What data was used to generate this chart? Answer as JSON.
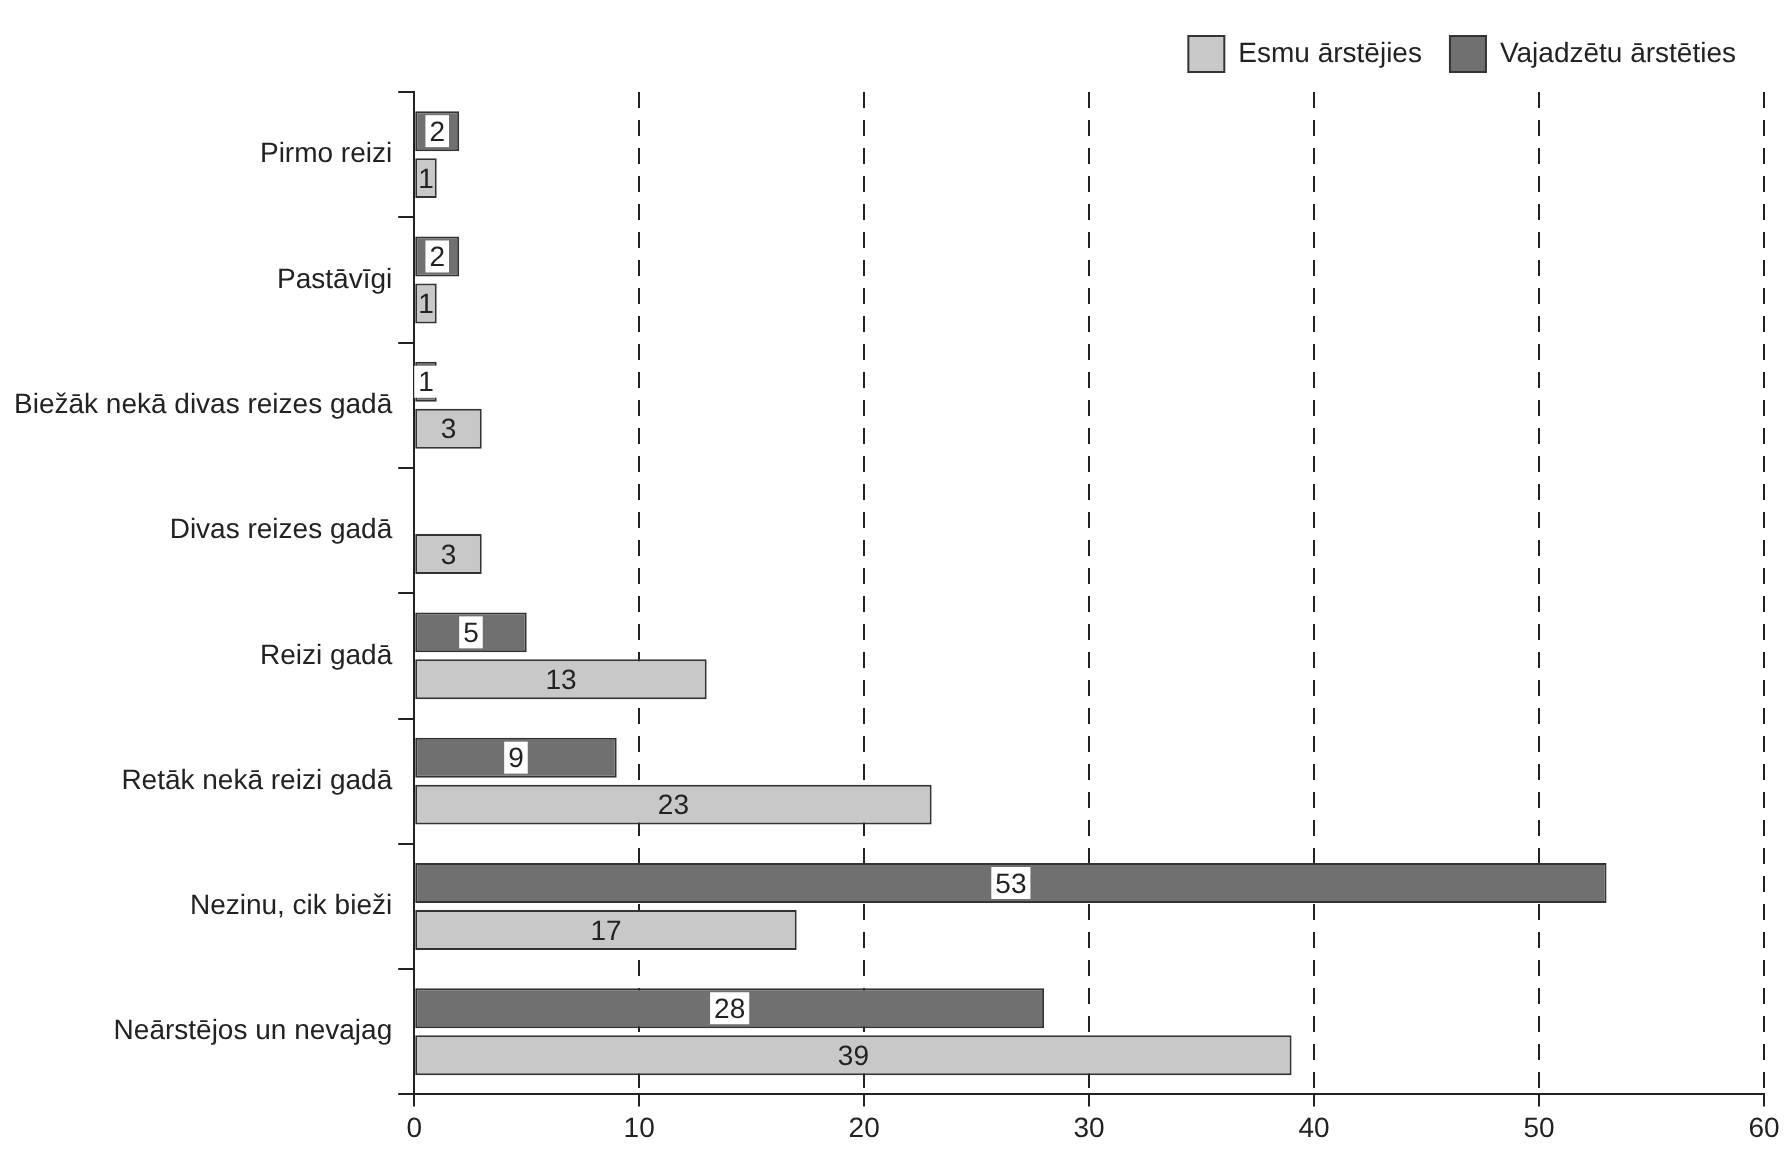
{
  "chart_data": {
    "type": "bar",
    "orientation": "horizontal",
    "categories": [
      "Pirmo reizi",
      "Pastāvīgi",
      "Biežāk nekā divas reizes gadā",
      "Divas reizes gadā",
      "Reizi gadā",
      "Retāk nekā reizi gadā",
      "Nezinu, cik bieži",
      "Neārstējos un nevajag"
    ],
    "series": [
      {
        "name": "Vajadzētu ārstēties",
        "color": "#707070",
        "values": [
          2,
          2,
          1,
          null,
          5,
          9,
          53,
          28
        ]
      },
      {
        "name": "Esmu ārstējies",
        "color": "#c8c8c8",
        "values": [
          1,
          1,
          3,
          3,
          13,
          23,
          17,
          39
        ]
      }
    ],
    "xlim": [
      0,
      60
    ],
    "xticks": [
      0,
      10,
      20,
      30,
      40,
      50,
      60
    ],
    "grid": "x",
    "legend": "top right",
    "data_labels": true
  }
}
